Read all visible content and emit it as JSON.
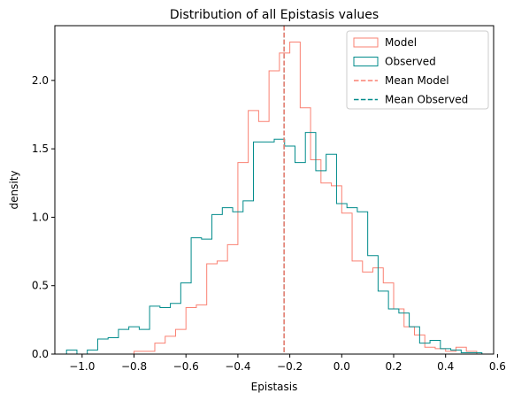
{
  "chart_data": {
    "type": "histogram",
    "title": "Distribution of all Epistasis values",
    "xlabel": "Epistasis",
    "ylabel": "density",
    "xlim": [
      -1.105,
      0.585
    ],
    "ylim": [
      0,
      2.4
    ],
    "xticks": [
      -1.0,
      -0.8,
      -0.6,
      -0.4,
      -0.2,
      0.0,
      0.2,
      0.4,
      0.6
    ],
    "xtick_labels": [
      "−1.0",
      "−0.8",
      "−0.6",
      "−0.4",
      "−0.2",
      "0.0",
      "0.2",
      "0.4",
      "0.6"
    ],
    "yticks": [
      0.0,
      0.5,
      1.0,
      1.5,
      2.0
    ],
    "ytick_labels": [
      "0.0",
      "0.5",
      "1.0",
      "1.5",
      "2.0"
    ],
    "grid": false,
    "legend_position": "top-right",
    "series": [
      {
        "name": "Model",
        "style": "step",
        "color": "#FA8072",
        "bin_edges": [
          -0.8,
          -0.76,
          -0.72,
          -0.68,
          -0.64,
          -0.6,
          -0.56,
          -0.52,
          -0.48,
          -0.44,
          -0.4,
          -0.36,
          -0.32,
          -0.28,
          -0.24,
          -0.2,
          -0.16,
          -0.12,
          -0.08,
          -0.04,
          0.0,
          0.04,
          0.08,
          0.12,
          0.16,
          0.2,
          0.24,
          0.28,
          0.32,
          0.36,
          0.4,
          0.44,
          0.48,
          0.52
        ],
        "densities": [
          0.02,
          0.02,
          0.08,
          0.13,
          0.18,
          0.34,
          0.36,
          0.66,
          0.68,
          0.8,
          1.4,
          1.78,
          1.7,
          2.07,
          2.2,
          2.28,
          1.8,
          1.42,
          1.25,
          1.23,
          1.03,
          0.68,
          0.6,
          0.63,
          0.52,
          0.33,
          0.2,
          0.14,
          0.05,
          0.04,
          0.02,
          0.05,
          0.02
        ]
      },
      {
        "name": "Observed",
        "style": "step",
        "color": "#008B8B",
        "bin_edges": [
          -1.06,
          -1.02,
          -0.98,
          -0.94,
          -0.9,
          -0.86,
          -0.82,
          -0.78,
          -0.74,
          -0.7,
          -0.66,
          -0.62,
          -0.58,
          -0.54,
          -0.5,
          -0.46,
          -0.42,
          -0.38,
          -0.34,
          -0.3,
          -0.26,
          -0.22,
          -0.18,
          -0.14,
          -0.1,
          -0.06,
          -0.02,
          0.02,
          0.06,
          0.1,
          0.14,
          0.18,
          0.22,
          0.26,
          0.3,
          0.34,
          0.38,
          0.42,
          0.46,
          0.5,
          0.54
        ],
        "densities": [
          0.03,
          0.0,
          0.03,
          0.11,
          0.12,
          0.18,
          0.2,
          0.18,
          0.35,
          0.34,
          0.37,
          0.52,
          0.85,
          0.84,
          1.02,
          1.07,
          1.04,
          1.12,
          1.55,
          1.55,
          1.57,
          1.52,
          1.4,
          1.62,
          1.34,
          1.46,
          1.1,
          1.07,
          1.04,
          0.72,
          0.46,
          0.33,
          0.3,
          0.2,
          0.08,
          0.1,
          0.04,
          0.03,
          0.01,
          0.01
        ]
      }
    ],
    "vlines": [
      {
        "name": "Mean Model",
        "x": -0.222,
        "color": "#FA8072",
        "style": "dashed"
      },
      {
        "name": "Mean Observed",
        "x": -0.222,
        "color": "#008B8B",
        "style": "dashed"
      }
    ]
  }
}
